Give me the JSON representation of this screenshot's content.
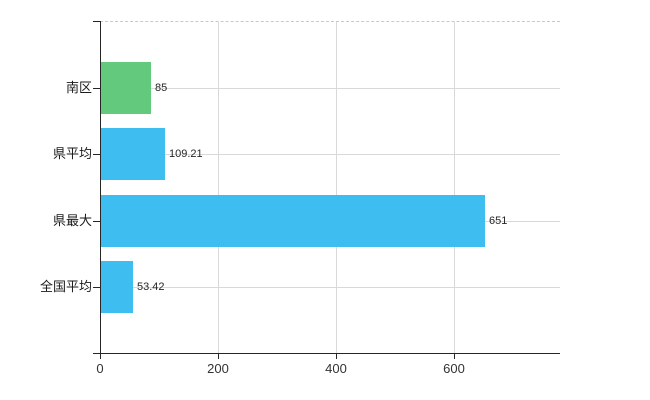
{
  "chart_data": {
    "type": "bar",
    "orientation": "horizontal",
    "title": "",
    "xlabel": "",
    "ylabel": "",
    "categories": [
      "南区",
      "県平均",
      "県最大",
      "全国平均"
    ],
    "values": [
      85,
      109.21,
      651,
      53.42
    ],
    "value_labels": [
      "85",
      "109.21",
      "651",
      "53.42"
    ],
    "bar_colors": [
      "#63c97c",
      "#3ebdf0",
      "#3ebdf0",
      "#3ebdf0"
    ],
    "x_ticks": [
      0,
      200,
      400,
      600
    ],
    "x_tick_labels": [
      "0",
      "200",
      "400",
      "600"
    ],
    "xlim": [
      0,
      780
    ],
    "grid": true,
    "legend": null,
    "colors": {
      "bar_blue": "#3ebdf0",
      "bar_green": "#63c97c",
      "grid": "#d9d9d9",
      "axis": "#262626",
      "tick_text": "#333333",
      "top_border": "#c9c9c9",
      "background": "#ffffff"
    }
  }
}
